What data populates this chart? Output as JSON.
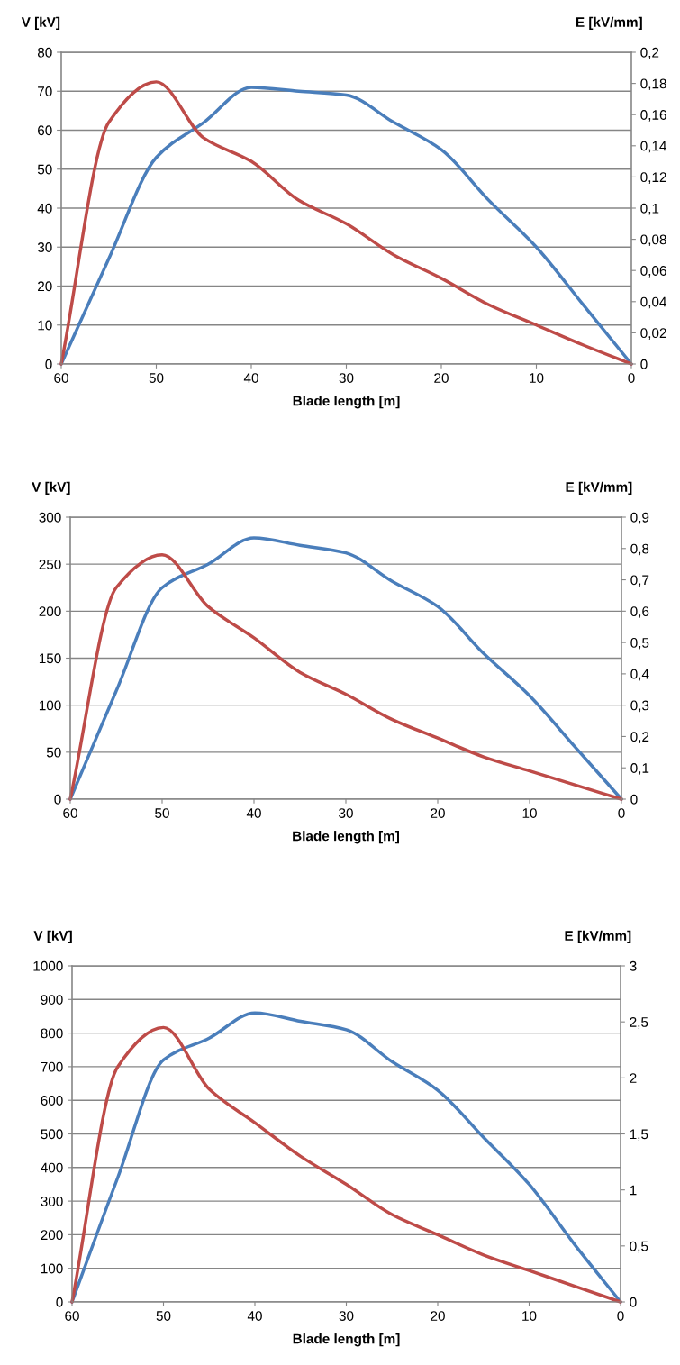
{
  "chart_data": [
    {
      "type": "line",
      "xlabel": "Blade length [m]",
      "ylabel": "V [kV]",
      "y2label": "E [kV/mm]",
      "x": [
        60,
        55,
        50,
        45,
        40,
        35,
        30,
        25,
        20,
        15,
        10,
        5,
        0
      ],
      "xlim": [
        60,
        0
      ],
      "xticks": [
        60,
        50,
        40,
        30,
        20,
        10,
        0
      ],
      "ylim": [
        0,
        80
      ],
      "yticks": [
        0,
        10,
        20,
        30,
        40,
        50,
        60,
        70,
        80
      ],
      "y2lim": [
        0,
        0.2
      ],
      "y2ticks": [
        0,
        {
          "value": 0.02,
          "label": "0,02"
        },
        {
          "value": 0.04,
          "label": "0,04"
        },
        {
          "value": 0.06,
          "label": "0,06"
        },
        {
          "value": 0.08,
          "label": "0,08"
        },
        {
          "value": 0.1,
          "label": "0,1"
        },
        {
          "value": 0.12,
          "label": "0,12"
        },
        {
          "value": 0.14,
          "label": "0,14"
        },
        {
          "value": 0.16,
          "label": "0,16"
        },
        {
          "value": 0.18,
          "label": "0,18"
        },
        {
          "value": 0.2,
          "label": "0,2"
        }
      ],
      "grid": "y",
      "series": [
        {
          "color": "#4a7ebb",
          "values": [
            0,
            27,
            53,
            62,
            71,
            70,
            69,
            62,
            55,
            42,
            30,
            15,
            0
          ]
        },
        {
          "color": "#be4b48",
          "axis": "y2",
          "values": [
            0,
            0.155,
            0.181,
            0.145,
            0.13,
            0.105,
            0.09,
            0.07,
            0.055,
            0.038,
            0.025,
            0.012,
            0
          ]
        }
      ]
    },
    {
      "type": "line",
      "xlabel": "Blade length [m]",
      "ylabel": "V [kV]",
      "y2label": "E [kV/mm]",
      "x": [
        60,
        55,
        50,
        45,
        40,
        35,
        30,
        25,
        20,
        15,
        10,
        5,
        0
      ],
      "xlim": [
        60,
        0
      ],
      "xticks": [
        60,
        50,
        40,
        30,
        20,
        10,
        0
      ],
      "ylim": [
        0,
        300
      ],
      "yticks": [
        0,
        50,
        100,
        150,
        200,
        250,
        300
      ],
      "y2lim": [
        0,
        0.9
      ],
      "y2ticks": [
        0,
        {
          "value": 0.1,
          "label": "0,1"
        },
        {
          "value": 0.2,
          "label": "0,2"
        },
        {
          "value": 0.3,
          "label": "0,3"
        },
        {
          "value": 0.4,
          "label": "0,4"
        },
        {
          "value": 0.5,
          "label": "0,5"
        },
        {
          "value": 0.6,
          "label": "0,6"
        },
        {
          "value": 0.7,
          "label": "0,7"
        },
        {
          "value": 0.8,
          "label": "0,8"
        },
        {
          "value": 0.9,
          "label": "0,9"
        }
      ],
      "grid": "y",
      "series": [
        {
          "color": "#4a7ebb",
          "values": [
            0,
            115,
            225,
            250,
            278,
            270,
            262,
            232,
            205,
            155,
            110,
            55,
            0
          ]
        },
        {
          "color": "#be4b48",
          "axis": "y2",
          "values": [
            0,
            0.675,
            0.78,
            0.615,
            0.515,
            0.405,
            0.335,
            0.255,
            0.195,
            0.135,
            0.09,
            0.045,
            0
          ]
        }
      ]
    },
    {
      "type": "line",
      "xlabel": "Blade length [m]",
      "ylabel": "V [kV]",
      "y2label": "E [kV/mm]",
      "x": [
        60,
        55,
        50,
        45,
        40,
        35,
        30,
        25,
        20,
        15,
        10,
        5,
        0
      ],
      "xlim": [
        60,
        0
      ],
      "xticks": [
        60,
        50,
        40,
        30,
        20,
        10,
        0
      ],
      "ylim": [
        0,
        1000
      ],
      "yticks": [
        0,
        100,
        200,
        300,
        400,
        500,
        600,
        700,
        800,
        900,
        1000
      ],
      "y2lim": [
        0,
        3
      ],
      "y2ticks": [
        0,
        {
          "value": 0.5,
          "label": "0,5"
        },
        1,
        {
          "value": 1.5,
          "label": "1,5"
        },
        2,
        {
          "value": 2.5,
          "label": "2,5"
        },
        3
      ],
      "grid": "y",
      "series": [
        {
          "color": "#4a7ebb",
          "values": [
            0,
            370,
            720,
            785,
            860,
            835,
            810,
            715,
            630,
            490,
            350,
            170,
            0
          ]
        },
        {
          "color": "#be4b48",
          "axis": "y2",
          "values": [
            0,
            2.1,
            2.45,
            1.9,
            1.6,
            1.3,
            1.05,
            0.78,
            0.6,
            0.42,
            0.28,
            0.14,
            0
          ]
        }
      ]
    }
  ]
}
